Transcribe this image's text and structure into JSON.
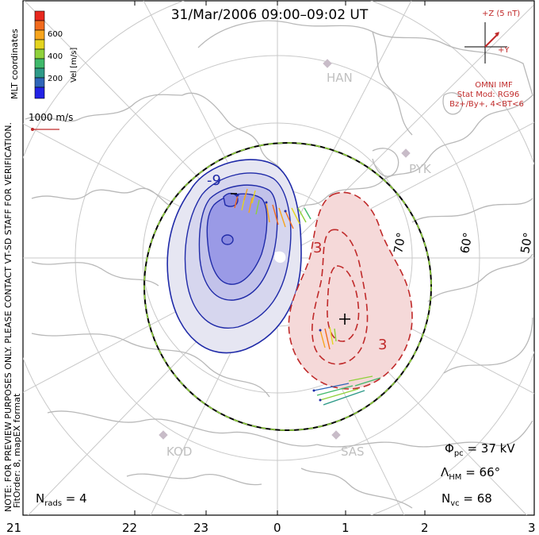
{
  "title": "31/Mar/2006 09:00–09:02 UT",
  "side_note_1": "NOTE: FOR PREVIEW PURPOSES ONLY. PLEASE CONTACT VT-SD STAFF FOR VERIFICATION.",
  "side_note_2": "FitOrder: 8, mapEX format",
  "side_note_3": "MLT coordinates",
  "colorbar": {
    "label": "Vel [m/s]",
    "ticks": [
      "600",
      "400",
      "200"
    ],
    "colors": [
      "#e8281e",
      "#f26b1d",
      "#f7a51d",
      "#e4d41f",
      "#8fd13b",
      "#3fb96b",
      "#2e9a88",
      "#2f66b9",
      "#2323e6"
    ]
  },
  "scale_vector": "1000 m/s",
  "imf": {
    "z_label": "+Z (5 nT)",
    "y_label": "+Y",
    "source": "OMNI IMF",
    "stat_mod": "Stat Mod: RG96",
    "condition": "Bz+/By+, 4<BT<6"
  },
  "latitude_labels": [
    "70°",
    "60°",
    "50°"
  ],
  "mlt_ticks": [
    "21",
    "22",
    "23",
    "0",
    "1",
    "2",
    "3"
  ],
  "stations": [
    "HAN",
    "PYK",
    "KOD",
    "SAS"
  ],
  "contour_labels": {
    "negative": "-9",
    "positive": "3"
  },
  "stats": {
    "phi_symbol": "Φ",
    "phi_sub": "pc",
    "phi_value": " = 37 kV",
    "lambda_symbol": "Λ",
    "lambda_sub": "HM",
    "lambda_value": " = 66°",
    "nvc_symbol": "N",
    "nvc_sub": "vc",
    "nvc_value": " = 68",
    "nrads_symbol": "N",
    "nrads_sub": "rads",
    "nrads_value": " = 4"
  }
}
